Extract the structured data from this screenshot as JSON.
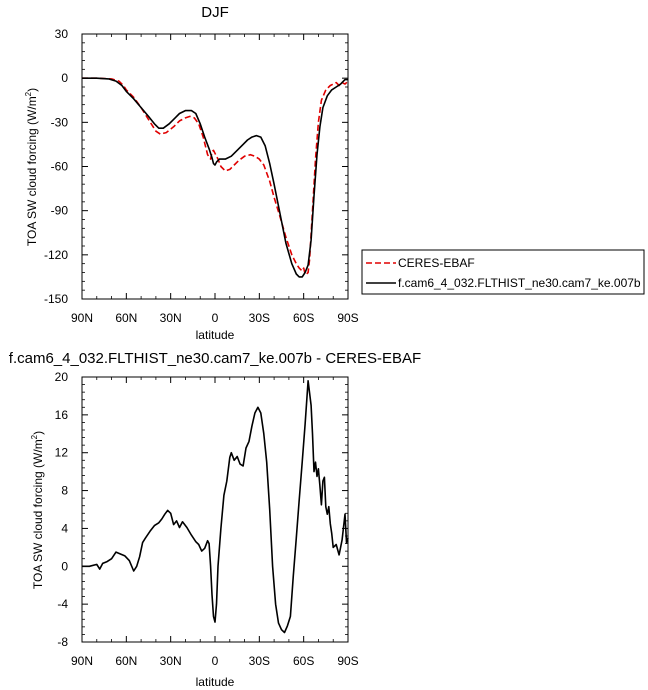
{
  "chart_data": [
    {
      "type": "line",
      "title": "DJF",
      "xlabel": "latitude",
      "ylabel_main": "TOA SW cloud forcing (W/m",
      "ylabel_sup": "2",
      "ylabel_end": ")",
      "xlim": [
        90,
        -90
      ],
      "ylim": [
        -150,
        30
      ],
      "xticks": [
        90,
        60,
        30,
        0,
        -30,
        -60,
        -90
      ],
      "xtick_labels": [
        "90N",
        "60N",
        "30N",
        "0",
        "30S",
        "60S",
        "90S"
      ],
      "yticks": [
        30,
        0,
        -30,
        -60,
        -90,
        -120,
        -150
      ],
      "ytick_labels": [
        "30",
        "0",
        "-30",
        "-60",
        "-90",
        "-120",
        "-150"
      ],
      "legend_position": "right",
      "series": [
        {
          "name": "CERES-EBAF",
          "color": "#e00000",
          "dash": "dashed",
          "points": [
            [
              90,
              0
            ],
            [
              80,
              0
            ],
            [
              70,
              -0.5
            ],
            [
              65,
              -2
            ],
            [
              62,
              -5
            ],
            [
              60,
              -8
            ],
            [
              55,
              -13
            ],
            [
              50,
              -20
            ],
            [
              45,
              -28
            ],
            [
              40,
              -36
            ],
            [
              37,
              -38
            ],
            [
              33,
              -37
            ],
            [
              28,
              -33
            ],
            [
              24,
              -29
            ],
            [
              20,
              -27
            ],
            [
              17,
              -26
            ],
            [
              14,
              -27
            ],
            [
              11,
              -31
            ],
            [
              8,
              -40
            ],
            [
              5,
              -52
            ],
            [
              3,
              -55
            ],
            [
              2,
              -50
            ],
            [
              1,
              -49
            ],
            [
              0,
              -51
            ],
            [
              -2,
              -55
            ],
            [
              -4,
              -60
            ],
            [
              -7,
              -63
            ],
            [
              -10,
              -62
            ],
            [
              -13,
              -59
            ],
            [
              -16,
              -56
            ],
            [
              -20,
              -53
            ],
            [
              -24,
              -52
            ],
            [
              -27,
              -53
            ],
            [
              -30,
              -55
            ],
            [
              -33,
              -59
            ],
            [
              -37,
              -70
            ],
            [
              -40,
              -81
            ],
            [
              -44,
              -94
            ],
            [
              -48,
              -108
            ],
            [
              -52,
              -120
            ],
            [
              -55,
              -126
            ],
            [
              -57,
              -129
            ],
            [
              -59,
              -131
            ],
            [
              -60,
              -129
            ],
            [
              -61,
              -133
            ],
            [
              -62,
              -133
            ],
            [
              -63,
              -132
            ],
            [
              -64,
              -123
            ],
            [
              -66,
              -90
            ],
            [
              -68,
              -55
            ],
            [
              -70,
              -30
            ],
            [
              -72,
              -15
            ],
            [
              -75,
              -8
            ],
            [
              -78,
              -5
            ],
            [
              -80,
              -4
            ],
            [
              -82,
              -3
            ],
            [
              -84,
              -5
            ],
            [
              -86,
              -3
            ],
            [
              -88,
              -4
            ],
            [
              -90,
              -2
            ]
          ]
        },
        {
          "name": "f.cam6_4_032.FLTHIST_ne30.cam7_ke.007b",
          "color": "#000000",
          "dash": "solid",
          "points": [
            [
              90,
              0
            ],
            [
              80,
              0
            ],
            [
              72,
              -0.5
            ],
            [
              67,
              -2
            ],
            [
              63,
              -5
            ],
            [
              60,
              -9
            ],
            [
              55,
              -14
            ],
            [
              50,
              -20
            ],
            [
              45,
              -26
            ],
            [
              41,
              -31
            ],
            [
              38,
              -34
            ],
            [
              35,
              -34
            ],
            [
              31,
              -31
            ],
            [
              27,
              -27
            ],
            [
              24,
              -24
            ],
            [
              20,
              -22
            ],
            [
              16,
              -22
            ],
            [
              13,
              -24
            ],
            [
              10,
              -31
            ],
            [
              7,
              -40
            ],
            [
              4,
              -48
            ],
            [
              2,
              -54
            ],
            [
              1,
              -58
            ],
            [
              0,
              -59
            ],
            [
              -1,
              -57
            ],
            [
              -3,
              -55
            ],
            [
              -7,
              -55
            ],
            [
              -11,
              -53
            ],
            [
              -15,
              -49
            ],
            [
              -19,
              -45
            ],
            [
              -22,
              -42
            ],
            [
              -25,
              -40
            ],
            [
              -28,
              -39
            ],
            [
              -31,
              -40
            ],
            [
              -34,
              -46
            ],
            [
              -37,
              -58
            ],
            [
              -40,
              -72
            ],
            [
              -44,
              -92
            ],
            [
              -48,
              -112
            ],
            [
              -52,
              -126
            ],
            [
              -55,
              -133
            ],
            [
              -57,
              -135
            ],
            [
              -59,
              -135
            ],
            [
              -61,
              -132
            ],
            [
              -63,
              -127
            ],
            [
              -65,
              -110
            ],
            [
              -67,
              -80
            ],
            [
              -69,
              -52
            ],
            [
              -71,
              -33
            ],
            [
              -73,
              -20
            ],
            [
              -76,
              -12
            ],
            [
              -79,
              -8
            ],
            [
              -82,
              -6
            ],
            [
              -85,
              -4
            ],
            [
              -88,
              -1
            ],
            [
              -90,
              -1
            ]
          ]
        }
      ]
    },
    {
      "type": "line",
      "title": "f.cam6_4_032.FLTHIST_ne30.cam7_ke.007b - CERES-EBAF",
      "xlabel": "latitude",
      "ylabel_main": "TOA SW cloud forcing (W/m",
      "ylabel_sup": "2",
      "ylabel_end": ")",
      "xlim": [
        90,
        -90
      ],
      "ylim": [
        -8,
        20
      ],
      "xticks": [
        90,
        60,
        30,
        0,
        -30,
        -60,
        -90
      ],
      "xtick_labels": [
        "90N",
        "60N",
        "30N",
        "0",
        "30S",
        "60S",
        "90S"
      ],
      "yticks": [
        20,
        16,
        12,
        8,
        4,
        0,
        -4,
        -8
      ],
      "ytick_labels": [
        "20",
        "16",
        "12",
        "8",
        "4",
        "0",
        "-4",
        "-8"
      ],
      "series": [
        {
          "name": "",
          "color": "#000000",
          "dash": "solid",
          "points": [
            [
              90,
              0
            ],
            [
              85,
              0
            ],
            [
              80,
              0.2
            ],
            [
              78,
              -0.3
            ],
            [
              76,
              0.3
            ],
            [
              73,
              0.5
            ],
            [
              70,
              0.8
            ],
            [
              67,
              1.5
            ],
            [
              64,
              1.3
            ],
            [
              61,
              1.1
            ],
            [
              58,
              0.6
            ],
            [
              55,
              -0.5
            ],
            [
              53,
              0
            ],
            [
              51,
              1
            ],
            [
              49,
              2.5
            ],
            [
              47,
              3
            ],
            [
              44,
              3.7
            ],
            [
              41,
              4.3
            ],
            [
              38,
              4.6
            ],
            [
              36,
              5
            ],
            [
              34,
              5.5
            ],
            [
              32,
              5.9
            ],
            [
              30,
              5.6
            ],
            [
              28,
              4.4
            ],
            [
              26,
              4.8
            ],
            [
              24,
              4.1
            ],
            [
              22,
              4.7
            ],
            [
              19,
              4.1
            ],
            [
              16,
              3.3
            ],
            [
              13,
              2.6
            ],
            [
              11,
              2.3
            ],
            [
              9,
              1.6
            ],
            [
              7,
              1.9
            ],
            [
              5,
              2.7
            ],
            [
              4,
              2.4
            ],
            [
              3,
              0
            ],
            [
              2,
              -3
            ],
            [
              1,
              -5.3
            ],
            [
              0,
              -5.9
            ],
            [
              -1,
              -4
            ],
            [
              -2,
              0
            ],
            [
              -4,
              4
            ],
            [
              -6,
              7.5
            ],
            [
              -8,
              9
            ],
            [
              -10,
              11.5
            ],
            [
              -11,
              12
            ],
            [
              -13,
              11.2
            ],
            [
              -15,
              11.6
            ],
            [
              -17,
              10.8
            ],
            [
              -19,
              10.6
            ],
            [
              -21,
              12.5
            ],
            [
              -23,
              13.2
            ],
            [
              -25,
              14.8
            ],
            [
              -27,
              16.2
            ],
            [
              -29,
              16.8
            ],
            [
              -31,
              16.2
            ],
            [
              -33,
              14
            ],
            [
              -35,
              11
            ],
            [
              -37,
              6
            ],
            [
              -39,
              0
            ],
            [
              -41,
              -4
            ],
            [
              -43,
              -6
            ],
            [
              -45,
              -6.7
            ],
            [
              -47,
              -7
            ],
            [
              -49,
              -6.3
            ],
            [
              -51,
              -5.3
            ],
            [
              -53,
              -1
            ],
            [
              -55,
              3
            ],
            [
              -57,
              7
            ],
            [
              -59,
              11
            ],
            [
              -61,
              15
            ],
            [
              -63,
              19.6
            ],
            [
              -65,
              17
            ],
            [
              -66,
              14
            ],
            [
              -67,
              10
            ],
            [
              -68,
              11
            ],
            [
              -69,
              9.5
            ],
            [
              -70,
              10.3
            ],
            [
              -71,
              8.5
            ],
            [
              -72,
              6.5
            ],
            [
              -73,
              9
            ],
            [
              -74,
              9.4
            ],
            [
              -75,
              6.3
            ],
            [
              -76,
              5.5
            ],
            [
              -77,
              6.3
            ],
            [
              -78,
              4.5
            ],
            [
              -79,
              3.5
            ],
            [
              -80,
              2
            ],
            [
              -82,
              2.3
            ],
            [
              -84,
              1.2
            ],
            [
              -86,
              2.8
            ],
            [
              -88,
              5.5
            ],
            [
              -89,
              2.5
            ],
            [
              -90,
              3
            ]
          ]
        }
      ]
    }
  ]
}
